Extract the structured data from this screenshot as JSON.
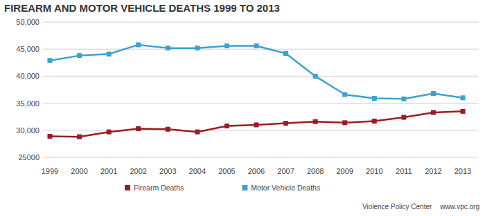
{
  "chart_data": {
    "type": "line",
    "title": "FIREARM AND MOTOR VEHICLE DEATHS 1999 TO 2013",
    "categories": [
      "1999",
      "2000",
      "2001",
      "2002",
      "2003",
      "2004",
      "2005",
      "2006",
      "2007",
      "2008",
      "2009",
      "2010",
      "2011",
      "2012",
      "2013"
    ],
    "series": [
      {
        "name": "Firearm Deaths",
        "color": "#9b1c22",
        "marker": "square",
        "line_style": "solid",
        "values": [
          28900,
          28800,
          29700,
          30300,
          30200,
          29700,
          30800,
          31000,
          31300,
          31600,
          31400,
          31700,
          32400,
          33300,
          33500
        ]
      },
      {
        "name": "Motor Vehicle Deaths",
        "color": "#3ba3cf",
        "marker": "square",
        "line_style": "solid",
        "values": [
          42900,
          43800,
          44100,
          45800,
          45200,
          45200,
          45600,
          45600,
          44200,
          40000,
          36600,
          35900,
          35800,
          36800,
          36000
        ]
      }
    ],
    "ylim": [
      25000,
      50000
    ],
    "yticks": [
      25000,
      {
        "value": 30000,
        "label": "30,000"
      },
      {
        "value": 35000,
        "label": "35,000"
      },
      {
        "value": 40000,
        "label": "40,000"
      },
      {
        "value": 45000,
        "label": "45,000"
      },
      {
        "value": 50000,
        "label": "50,000"
      }
    ],
    "grid": true,
    "legend": "bottom",
    "annotations": [
      "Violence Policy Center",
      "www.vpc.org"
    ]
  }
}
